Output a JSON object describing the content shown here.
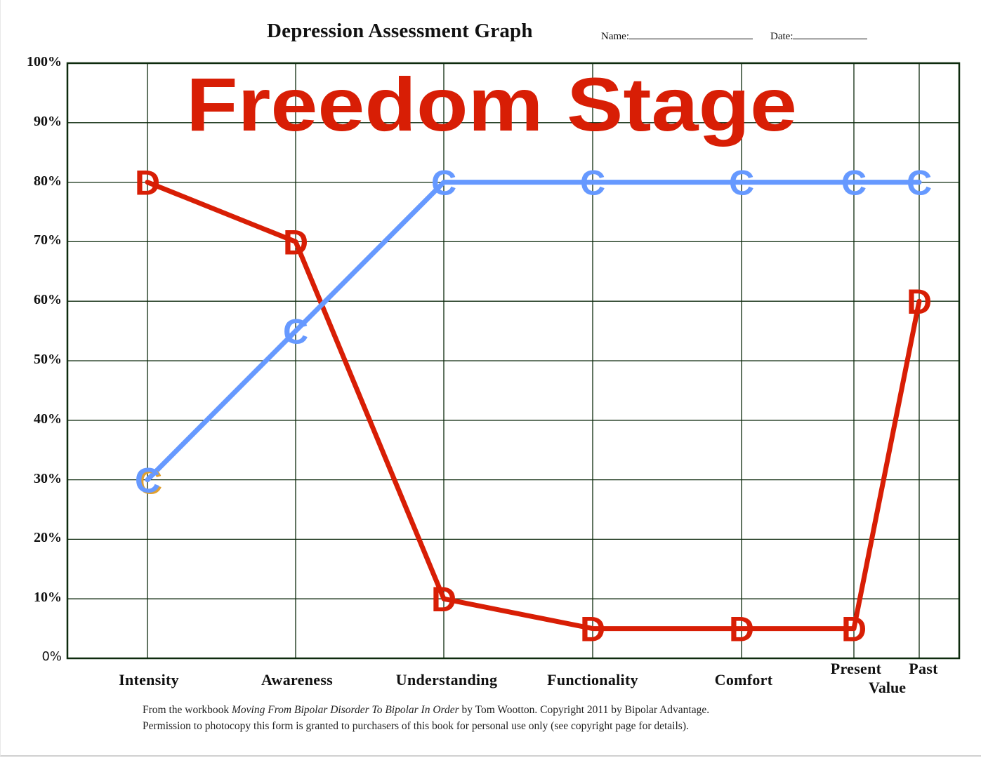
{
  "header": {
    "title": "Depression Assessment Graph",
    "name_label": "Name:",
    "date_label": "Date:"
  },
  "overlay": {
    "stage_title": "Freedom Stage",
    "stage_color": "#d81e05"
  },
  "y_axis": {
    "ticks": [
      "100%",
      "90%",
      "80%",
      "70%",
      "60%",
      "50%",
      "40%",
      "30%",
      "20%",
      "10%",
      "0%"
    ]
  },
  "x_axis": {
    "ticks": [
      "Intensity",
      "Awareness",
      "Understanding",
      "Functionality",
      "Comfort",
      "Present",
      "Past"
    ],
    "group_label": "Value"
  },
  "footer": {
    "line1_prefix": "From the workbook ",
    "line1_book": "Moving From Bipolar Disorder To Bipolar In Order",
    "line1_suffix": " by Tom Wootton. Copyright 2011 by Bipolar Advantage.",
    "line2": "Permission to photocopy this form is granted to purchasers of this book for personal use only (see copyright page for details)."
  },
  "colors": {
    "d_series": "#d81e05",
    "c_series": "#6699ff",
    "grid": "#0d2a0d",
    "frame": "#0d2a0d",
    "c_shadow": "#e0a030"
  },
  "chart_data": {
    "type": "line",
    "title": "Depression Assessment Graph",
    "subtitle": "Freedom Stage",
    "categories": [
      "Intensity",
      "Awareness",
      "Understanding",
      "Functionality",
      "Comfort",
      "Present Value",
      "Past Value"
    ],
    "series": [
      {
        "name": "D",
        "marker": "D",
        "color": "#d81e05",
        "values": [
          80,
          70,
          10,
          5,
          5,
          5,
          60
        ]
      },
      {
        "name": "C",
        "marker": "C",
        "color": "#6699ff",
        "values": [
          30,
          55,
          80,
          80,
          80,
          80,
          80
        ]
      }
    ],
    "xlabel": "",
    "ylabel": "",
    "ylim": [
      0,
      100
    ],
    "yticks": [
      0,
      10,
      20,
      30,
      40,
      50,
      60,
      70,
      80,
      90,
      100
    ],
    "ytick_format": "percent",
    "grid": true,
    "legend": "none (series identified by letter markers D and C)"
  }
}
